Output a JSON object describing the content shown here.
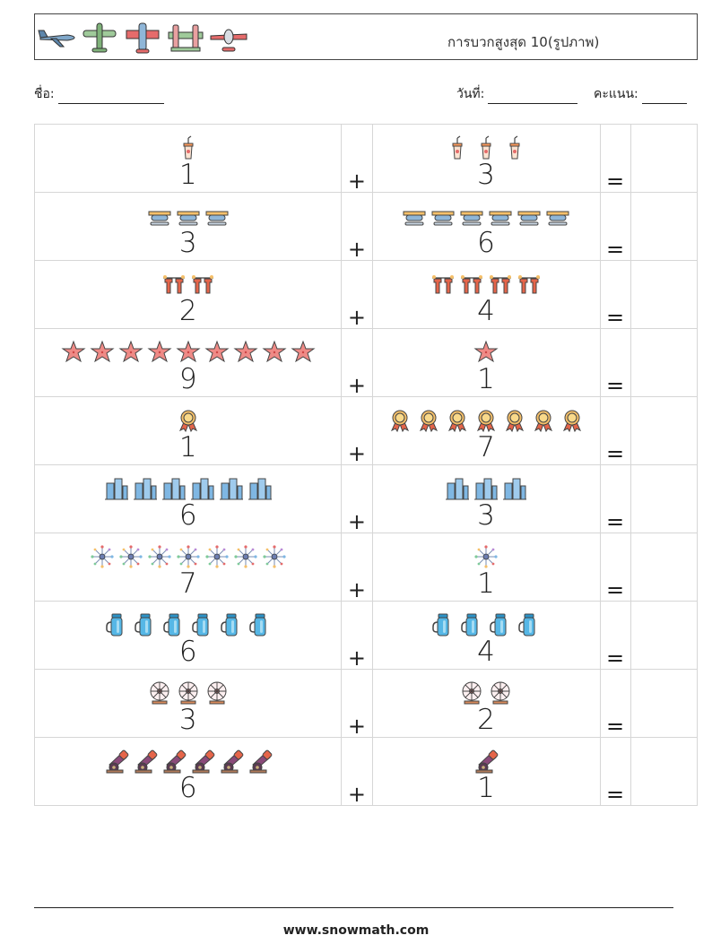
{
  "header": {
    "title": "การบวกสูงสุด 10(รูปภาพ)",
    "icons": [
      "jet-plane-icon",
      "propeller-plane-icon",
      "biplane-icon",
      "twin-boom-plane-icon",
      "red-plane-icon"
    ]
  },
  "form": {
    "name_label": "ชื่อ:",
    "date_label": "วันที่:",
    "score_label": "คะแนน:"
  },
  "operators": {
    "plus": "+",
    "equals": "="
  },
  "problems": [
    {
      "a": 1,
      "b": 3,
      "icon": "drink-cup-icon"
    },
    {
      "a": 3,
      "b": 6,
      "icon": "seaplane-icon"
    },
    {
      "a": 2,
      "b": 4,
      "icon": "laundry-icon"
    },
    {
      "a": 9,
      "b": 1,
      "icon": "starfish-icon"
    },
    {
      "a": 1,
      "b": 7,
      "icon": "medal-icon"
    },
    {
      "a": 6,
      "b": 3,
      "icon": "buildings-icon"
    },
    {
      "a": 7,
      "b": 1,
      "icon": "fireworks-icon"
    },
    {
      "a": 6,
      "b": 4,
      "icon": "thermos-icon"
    },
    {
      "a": 3,
      "b": 2,
      "icon": "ferris-wheel-icon"
    },
    {
      "a": 6,
      "b": 1,
      "icon": "cannon-icon"
    }
  ],
  "footer": {
    "website": "www.snowmath.com"
  }
}
